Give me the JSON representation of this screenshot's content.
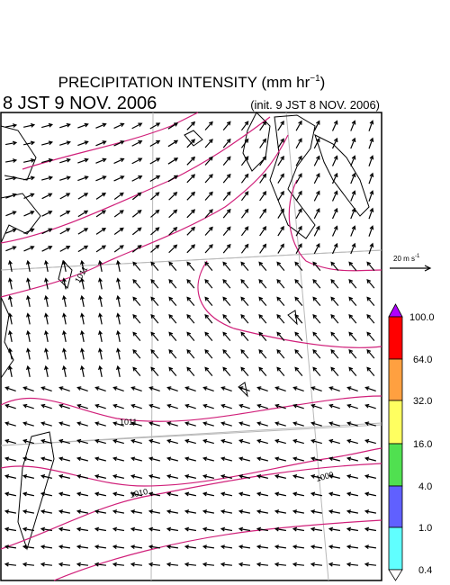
{
  "header": {
    "title": "PRECIPITATION INTENSITY (mm hr",
    "title_exp": "−1",
    "title_end": ")",
    "valid_time": "8 JST 9 NOV. 2006",
    "init_time": "(init. 9 JST 8 NOV. 2006)"
  },
  "vector_legend": {
    "text": "20 m s",
    "exp": "-1"
  },
  "contours": [
    "1011",
    "1011",
    "1010",
    "1009"
  ],
  "colorbar": {
    "labels": [
      "100.0",
      "64.0",
      "32.0",
      "16.0",
      "4.0",
      "1.0",
      "0.4"
    ]
  }
}
